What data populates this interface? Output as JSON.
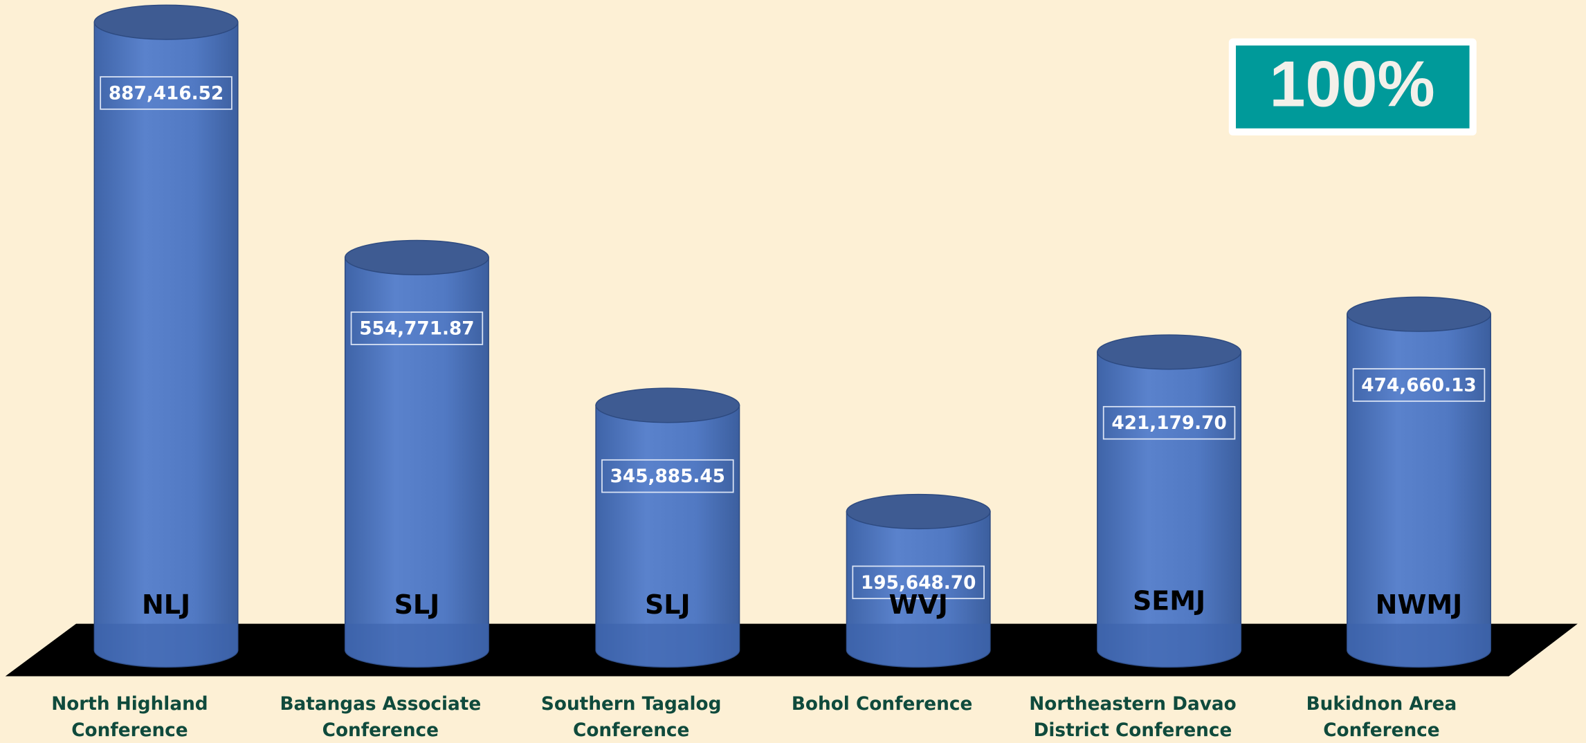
{
  "chart_data": {
    "type": "cylinder",
    "badge": "100%",
    "categories": [
      "North Highland Conference",
      "Batangas Associate Conference",
      "Southern Tagalog Conference",
      "Bohol Conference",
      "Northeastern Davao District Conference",
      "Bukidnon Area Conference"
    ],
    "bar_labels": [
      "NLJ",
      "SLJ",
      "SLJ",
      "WVJ",
      "SEMJ",
      "NWMJ"
    ],
    "values": [
      887416.52,
      554771.87,
      345885.45,
      195648.7,
      421179.7,
      474660.13
    ],
    "value_labels": [
      "887,416.52",
      "554,771.87",
      "345,885.45",
      "195,648.70",
      "421,179.70",
      "474,660.13"
    ],
    "color": "#4f78c4"
  }
}
